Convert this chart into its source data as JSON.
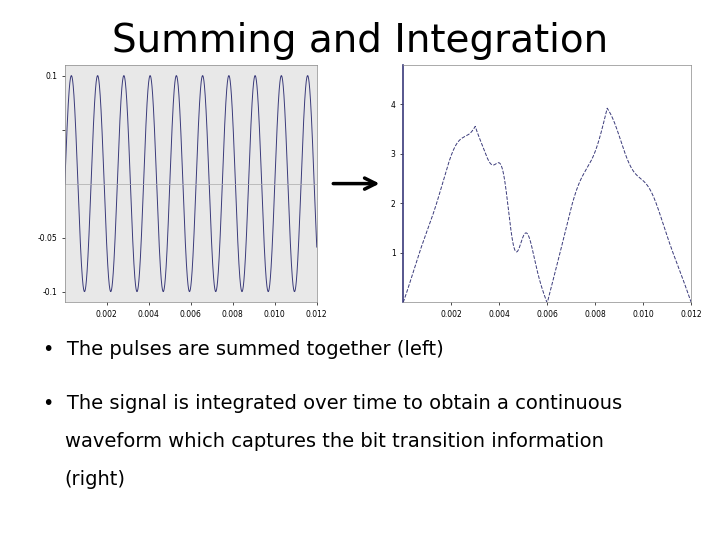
{
  "title": "Summing and Integration",
  "title_fontsize": 28,
  "background_color": "#ffffff",
  "bullet1": "The pulses are summed together (left)",
  "bullet2": "The signal is integrated over time to obtain a continuous\nwaveform which captures the bit transition information\n(right)",
  "bullet_fontsize": 14,
  "left_plot": {
    "xlim": [
      0,
      0.012
    ],
    "ylim": [
      -0.11,
      0.11
    ],
    "xticks": [
      0.002,
      0.004,
      0.006,
      0.008,
      0.01,
      0.012
    ],
    "line_color": "#3a3a7a",
    "freq": 800,
    "amplitude": 0.1
  },
  "right_plot": {
    "xlim": [
      0,
      0.012
    ],
    "ylim": [
      0,
      4.8
    ],
    "xticks": [
      0.002,
      0.004,
      0.006,
      0.008,
      0.01,
      0.012
    ],
    "yticks": [
      1,
      2,
      3,
      4
    ],
    "line_color": "#3a3a7a",
    "line_style": "--"
  },
  "arrow_color": "#000000"
}
